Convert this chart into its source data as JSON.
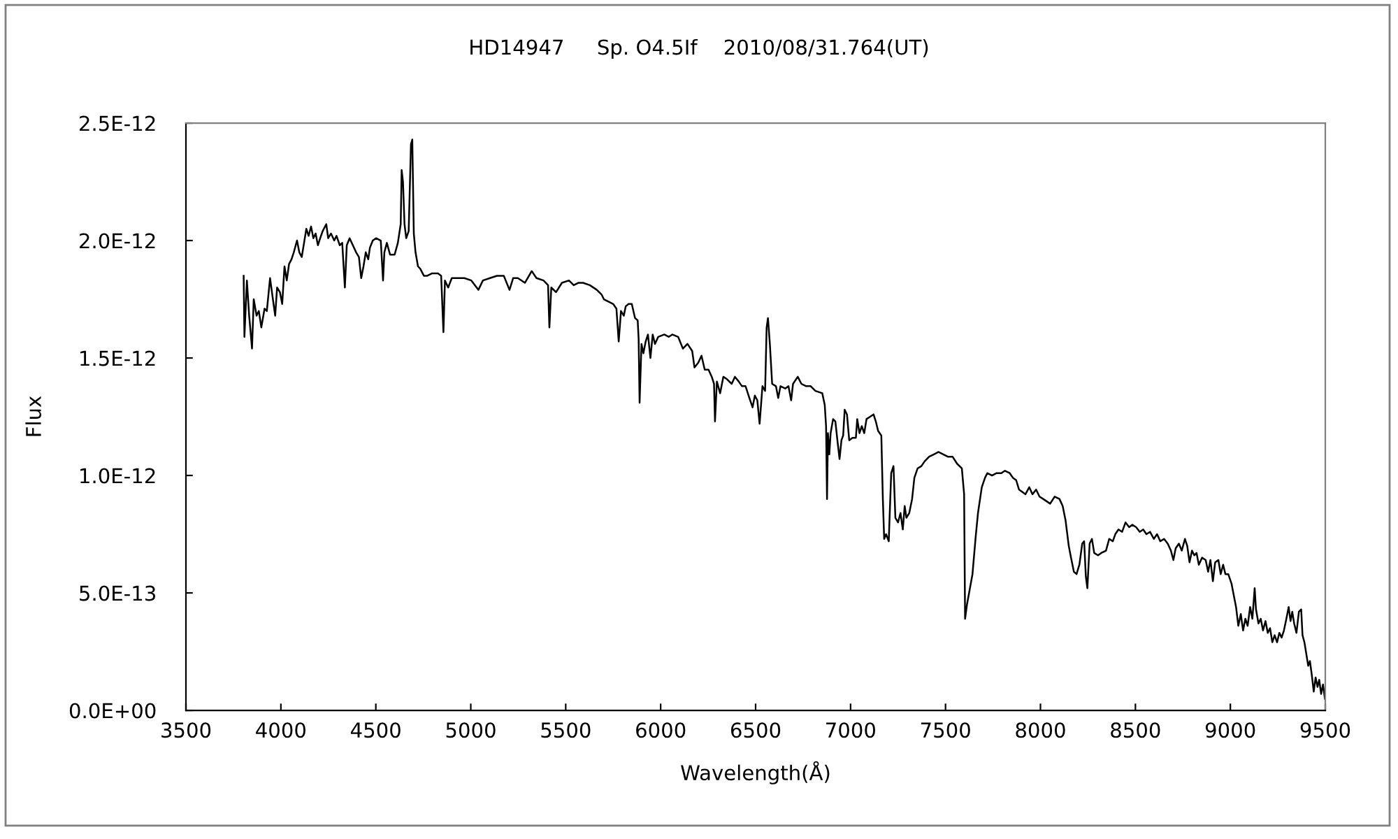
{
  "chart_data": {
    "type": "line",
    "title": "HD14947     Sp. O4.5If    2010/08/31.764(UT)",
    "xlabel": "Wavelength(Å)",
    "ylabel": "Flux",
    "x": [
      3804,
      3808,
      3821,
      3833,
      3848,
      3857,
      3872,
      3884,
      3897,
      3914,
      3926,
      3943,
      3958,
      3970,
      3980,
      3995,
      4007,
      4019,
      4031,
      4043,
      4056,
      4068,
      4085,
      4097,
      4110,
      4122,
      4134,
      4146,
      4159,
      4171,
      4183,
      4195,
      4207,
      4220,
      4239,
      4249,
      4264,
      4281,
      4293,
      4310,
      4323,
      4337,
      4347,
      4362,
      4379,
      4396,
      4411,
      4423,
      4435,
      4447,
      4460,
      4469,
      4484,
      4501,
      4526,
      4538,
      4545,
      4558,
      4575,
      4599,
      4616,
      4631,
      4636,
      4643,
      4651,
      4660,
      4673,
      4685,
      4692,
      4700,
      4709,
      4722,
      4734,
      4753,
      4771,
      4795,
      4827,
      4844,
      4856,
      4864,
      4881,
      4900,
      4930,
      4966,
      5003,
      5040,
      5064,
      5101,
      5138,
      5174,
      5204,
      5223,
      5248,
      5285,
      5321,
      5346,
      5383,
      5407,
      5414,
      5424,
      5449,
      5480,
      5517,
      5542,
      5566,
      5591,
      5627,
      5664,
      5689,
      5701,
      5725,
      5750,
      5767,
      5779,
      5791,
      5806,
      5816,
      5831,
      5848,
      5865,
      5879,
      5884,
      5889,
      5899,
      5909,
      5921,
      5933,
      5946,
      5958,
      5970,
      5987,
      6019,
      6043,
      6061,
      6092,
      6117,
      6141,
      6166,
      6178,
      6198,
      6215,
      6232,
      6252,
      6269,
      6281,
      6286,
      6296,
      6313,
      6330,
      6349,
      6374,
      6391,
      6411,
      6428,
      6447,
      6467,
      6484,
      6496,
      6509,
      6521,
      6536,
      6550,
      6558,
      6565,
      6575,
      6587,
      6607,
      6619,
      6631,
      6656,
      6673,
      6687,
      6697,
      6722,
      6741,
      6766,
      6790,
      6815,
      6851,
      6864,
      6871,
      6876,
      6881,
      6888,
      6895,
      6908,
      6920,
      6932,
      6942,
      6952,
      6961,
      6969,
      6981,
      6993,
      7010,
      7028,
      7035,
      7047,
      7059,
      7072,
      7084,
      7103,
      7121,
      7133,
      7145,
      7162,
      7170,
      7177,
      7187,
      7201,
      7214,
      7226,
      7236,
      7250,
      7263,
      7275,
      7285,
      7294,
      7309,
      7324,
      7336,
      7353,
      7373,
      7390,
      7414,
      7439,
      7463,
      7488,
      7512,
      7537,
      7561,
      7586,
      7598,
      7603,
      7613,
      7642,
      7659,
      7671,
      7691,
      7708,
      7720,
      7745,
      7769,
      7794,
      7813,
      7838,
      7855,
      7872,
      7887,
      7904,
      7921,
      7941,
      7958,
      7977,
      7995,
      8014,
      8051,
      8075,
      8100,
      8117,
      8132,
      8149,
      8161,
      8176,
      8190,
      8205,
      8220,
      8230,
      8239,
      8247,
      8259,
      8271,
      8283,
      8303,
      8320,
      8345,
      8362,
      8381,
      8394,
      8411,
      8430,
      8448,
      8467,
      8484,
      8504,
      8523,
      8541,
      8558,
      8577,
      8597,
      8614,
      8631,
      8651,
      8670,
      8687,
      8700,
      8712,
      8729,
      8744,
      8761,
      8773,
      8785,
      8798,
      8810,
      8822,
      8834,
      8851,
      8870,
      8883,
      8895,
      8908,
      8920,
      8937,
      8949,
      8962,
      8974,
      8989,
      9006,
      9018,
      9030,
      9042,
      9055,
      9067,
      9079,
      9091,
      9104,
      9116,
      9128,
      9135,
      9148,
      9160,
      9172,
      9185,
      9197,
      9209,
      9221,
      9233,
      9246,
      9258,
      9270,
      9282,
      9295,
      9307,
      9317,
      9326,
      9336,
      9348,
      9361,
      9373,
      9380,
      9390,
      9400,
      9410,
      9419,
      9429,
      9439,
      9449,
      9459,
      9468,
      9478,
      9488,
      9498
    ],
    "series": [
      {
        "color": "#000000",
        "values": [
          1.85e-12,
          1.59e-12,
          1.83e-12,
          1.68e-12,
          1.54e-12,
          1.75e-12,
          1.68e-12,
          1.7e-12,
          1.63e-12,
          1.71e-12,
          1.7e-12,
          1.84e-12,
          1.75e-12,
          1.68e-12,
          1.8e-12,
          1.78e-12,
          1.73e-12,
          1.89e-12,
          1.83e-12,
          1.9e-12,
          1.92e-12,
          1.95e-12,
          2e-12,
          1.95e-12,
          1.93e-12,
          1.99e-12,
          2.05e-12,
          2.02e-12,
          2.06e-12,
          2.01e-12,
          2.03e-12,
          1.98e-12,
          2.01e-12,
          2.04e-12,
          2.07e-12,
          2.01e-12,
          2.03e-12,
          2e-12,
          2.02e-12,
          1.98e-12,
          1.99e-12,
          1.8e-12,
          1.98e-12,
          2.01e-12,
          1.98e-12,
          1.95e-12,
          1.93e-12,
          1.84e-12,
          1.89e-12,
          1.95e-12,
          1.92e-12,
          1.97e-12,
          2e-12,
          2.01e-12,
          2e-12,
          1.83e-12,
          1.95e-12,
          1.99e-12,
          1.94e-12,
          1.94e-12,
          1.99e-12,
          2.07e-12,
          2.3e-12,
          2.25e-12,
          2.07e-12,
          2.01e-12,
          2.04e-12,
          2.41e-12,
          2.43e-12,
          2.03e-12,
          1.95e-12,
          1.89e-12,
          1.88e-12,
          1.85e-12,
          1.85e-12,
          1.86e-12,
          1.86e-12,
          1.85e-12,
          1.61e-12,
          1.83e-12,
          1.8e-12,
          1.84e-12,
          1.84e-12,
          1.84e-12,
          1.83e-12,
          1.79e-12,
          1.83e-12,
          1.84e-12,
          1.85e-12,
          1.85e-12,
          1.79e-12,
          1.84e-12,
          1.84e-12,
          1.82e-12,
          1.87e-12,
          1.84e-12,
          1.83e-12,
          1.81e-12,
          1.63e-12,
          1.8e-12,
          1.78e-12,
          1.82e-12,
          1.83e-12,
          1.81e-12,
          1.82e-12,
          1.82e-12,
          1.81e-12,
          1.79e-12,
          1.77e-12,
          1.75e-12,
          1.74e-12,
          1.73e-12,
          1.71e-12,
          1.57e-12,
          1.7e-12,
          1.68e-12,
          1.72e-12,
          1.73e-12,
          1.73e-12,
          1.67e-12,
          1.66e-12,
          1.58e-12,
          1.31e-12,
          1.56e-12,
          1.52e-12,
          1.57e-12,
          1.6e-12,
          1.5e-12,
          1.6e-12,
          1.56e-12,
          1.59e-12,
          1.6e-12,
          1.59e-12,
          1.6e-12,
          1.59e-12,
          1.54e-12,
          1.56e-12,
          1.53e-12,
          1.46e-12,
          1.48e-12,
          1.51e-12,
          1.45e-12,
          1.45e-12,
          1.42e-12,
          1.39e-12,
          1.23e-12,
          1.4e-12,
          1.35e-12,
          1.42e-12,
          1.41e-12,
          1.39e-12,
          1.42e-12,
          1.4e-12,
          1.38e-12,
          1.38e-12,
          1.33e-12,
          1.29e-12,
          1.34e-12,
          1.32e-12,
          1.22e-12,
          1.38e-12,
          1.36e-12,
          1.63e-12,
          1.67e-12,
          1.56e-12,
          1.39e-12,
          1.38e-12,
          1.33e-12,
          1.38e-12,
          1.37e-12,
          1.38e-12,
          1.32e-12,
          1.39e-12,
          1.42e-12,
          1.39e-12,
          1.38e-12,
          1.38e-12,
          1.36e-12,
          1.35e-12,
          1.3e-12,
          1.21e-12,
          9e-13,
          1.18e-12,
          1.09e-12,
          1.18e-12,
          1.24e-12,
          1.23e-12,
          1.14e-12,
          1.07e-12,
          1.15e-12,
          1.17e-12,
          1.28e-12,
          1.26e-12,
          1.15e-12,
          1.16e-12,
          1.16e-12,
          1.24e-12,
          1.18e-12,
          1.21e-12,
          1.18e-12,
          1.24e-12,
          1.25e-12,
          1.26e-12,
          1.23e-12,
          1.19e-12,
          1.17e-12,
          9e-13,
          7.3e-13,
          7.5e-13,
          7.2e-13,
          1.01e-12,
          1.04e-12,
          8.2e-13,
          8e-13,
          8.4e-13,
          7.7e-13,
          8.7e-13,
          8.2e-13,
          8.4e-13,
          9e-13,
          9.9e-13,
          1.03e-12,
          1.04e-12,
          1.06e-12,
          1.08e-12,
          1.09e-12,
          1.1e-12,
          1.09e-12,
          1.08e-12,
          1.08e-12,
          1.05e-12,
          1.03e-12,
          9.2e-13,
          3.9e-13,
          4.5e-13,
          5.8e-13,
          7.4e-13,
          8.4e-13,
          9.5e-13,
          9.9e-13,
          1.01e-12,
          1e-12,
          1.01e-12,
          1.01e-12,
          1.02e-12,
          1.01e-12,
          9.9e-13,
          9.8e-13,
          9.4e-13,
          9.3e-13,
          9.2e-13,
          9.5e-13,
          9.2e-13,
          9.4e-13,
          9.1e-13,
          9e-13,
          8.8e-13,
          9.1e-13,
          9e-13,
          8.7e-13,
          8.1e-13,
          7e-13,
          6.5e-13,
          5.9e-13,
          5.8e-13,
          6.2e-13,
          7.1e-13,
          7.2e-13,
          5.7e-13,
          5.2e-13,
          7.1e-13,
          7.3e-13,
          6.7e-13,
          6.6e-13,
          6.7e-13,
          6.8e-13,
          7.3e-13,
          7.2e-13,
          7.5e-13,
          7.7e-13,
          7.6e-13,
          8e-13,
          7.8e-13,
          7.9e-13,
          7.8e-13,
          7.6e-13,
          7.7e-13,
          7.5e-13,
          7.6e-13,
          7.3e-13,
          7.5e-13,
          7.2e-13,
          7.3e-13,
          7.1e-13,
          6.8e-13,
          6.4e-13,
          6.9e-13,
          7.1e-13,
          6.8e-13,
          7.3e-13,
          7e-13,
          6.3e-13,
          6.8e-13,
          6.6e-13,
          6.7e-13,
          6.2e-13,
          6.5e-13,
          6.4e-13,
          5.9e-13,
          6.4e-13,
          5.5e-13,
          6.3e-13,
          6.4e-13,
          5.8e-13,
          6.2e-13,
          5.8e-13,
          5.8e-13,
          5.4e-13,
          4.9e-13,
          4.4e-13,
          3.6e-13,
          4.1e-13,
          3.4e-13,
          3.9e-13,
          3.6e-13,
          4.4e-13,
          3.9e-13,
          5.2e-13,
          4.3e-13,
          3.7e-13,
          3.9e-13,
          3.4e-13,
          3.8e-13,
          3.3e-13,
          3.5e-13,
          2.9e-13,
          3.2e-13,
          2.9e-13,
          3.3e-13,
          3.1e-13,
          3.4e-13,
          3.9e-13,
          4.4e-13,
          3.8e-13,
          4.2e-13,
          3.7e-13,
          3.3e-13,
          4.2e-13,
          4.3e-13,
          3.2e-13,
          2.9e-13,
          2.4e-13,
          1.9e-13,
          2.1e-13,
          1.5e-13,
          8e-14,
          1.4e-13,
          1e-13,
          1.3e-13,
          7e-14,
          1.1e-13,
          5e-14
        ]
      }
    ],
    "xlim": [
      3500,
      9500
    ],
    "xticks": [
      3500,
      4000,
      4500,
      5000,
      5500,
      6000,
      6500,
      7000,
      7500,
      8000,
      8500,
      9000,
      9500
    ],
    "ylim": [
      0,
      2.5e-12
    ],
    "yticks": [
      {
        "value": 0,
        "label": "0.0E+00"
      },
      {
        "value": 5e-13,
        "label": "5.0E-13"
      },
      {
        "value": 1e-12,
        "label": "1.0E-12"
      },
      {
        "value": 1.5e-12,
        "label": "1.5E-12"
      },
      {
        "value": 2e-12,
        "label": "2.0E-12"
      },
      {
        "value": 2.5e-12,
        "label": "2.5E-12"
      }
    ],
    "grid": false,
    "marker": "none",
    "line_style": "solid"
  }
}
